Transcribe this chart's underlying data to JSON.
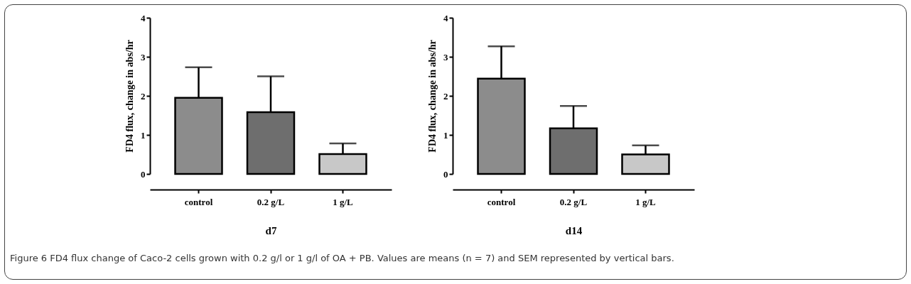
{
  "chart_data": [
    {
      "type": "bar",
      "xlabel": "d7",
      "ylabel": "FD4 flux, change in abs/hr",
      "categories": [
        "control",
        "0.2 g/L",
        "1 g/L"
      ],
      "values": [
        1.95,
        1.58,
        0.51
      ],
      "colors": [
        "#8c8c8c",
        "#6e6e6e",
        "#c8c8c8"
      ],
      "errors": [
        [
          1.95,
          2.73
        ],
        [
          1.58,
          2.5
        ],
        [
          0.51,
          0.78
        ]
      ],
      "ylim": [
        0,
        4
      ],
      "yticks": [
        0,
        1,
        2,
        3,
        4
      ],
      "annotations": [
        "Figure 6 FD4 flux change of Caco-2 cells grown with 0.2 g/l or 1 g/l of OA + PB. Values are means (n = 7) and SEM represented by vertical bars."
      ]
    },
    {
      "type": "bar",
      "xlabel": "d14",
      "ylabel": "FD4 flux, change in abs/hr",
      "categories": [
        "control",
        "0.2 g/L",
        "1 g/L"
      ],
      "values": [
        2.44,
        1.17,
        0.5
      ],
      "colors": [
        "#8c8c8c",
        "#6e6e6e",
        "#c8c8c8"
      ],
      "errors": [
        [
          2.44,
          3.27
        ],
        [
          1.17,
          1.74
        ],
        [
          0.5,
          0.73
        ]
      ],
      "ylim": [
        0,
        4
      ],
      "yticks": [
        0,
        1,
        2,
        3,
        4
      ]
    }
  ]
}
